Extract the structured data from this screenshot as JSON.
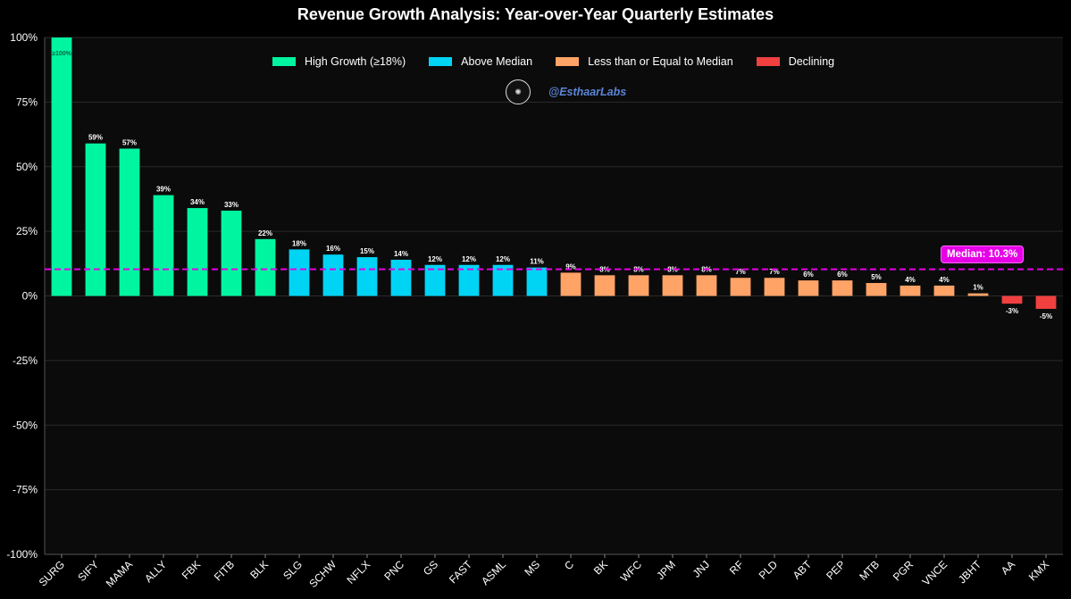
{
  "chart_data": {
    "type": "bar",
    "title": "Revenue Growth Analysis: Year-over-Year Quarterly Estimates",
    "xlabel": "",
    "ylabel": "",
    "ylim": [
      -100,
      100
    ],
    "yticks": [
      100,
      75,
      50,
      25,
      0,
      -25,
      -50,
      -75,
      -100
    ],
    "ytick_labels": [
      "100%",
      "75%",
      "50%",
      "25%",
      "0%",
      "-25%",
      "-50%",
      "-75%",
      "-100%"
    ],
    "categories": [
      "SURG",
      "SIFY",
      "MAMA",
      "ALLY",
      "FBK",
      "FITB",
      "BLK",
      "SLG",
      "SCHW",
      "NFLX",
      "PNC",
      "GS",
      "FAST",
      "ASML",
      "MS",
      "C",
      "BK",
      "WFC",
      "JPM",
      "JNJ",
      "RF",
      "PLD",
      "ABT",
      "PEP",
      "MTB",
      "PGR",
      "VNCE",
      "JBHT",
      "AA",
      "KMX"
    ],
    "values": [
      100,
      59,
      57,
      39,
      34,
      33,
      22,
      18,
      16,
      15,
      14,
      12,
      12,
      12,
      11,
      9,
      8,
      8,
      8,
      8,
      7,
      7,
      6,
      6,
      5,
      4,
      4,
      1,
      -3,
      -5
    ],
    "data_labels": [
      "≥100%",
      "59%",
      "57%",
      "39%",
      "34%",
      "33%",
      "22%",
      "18%",
      "16%",
      "15%",
      "14%",
      "12%",
      "12%",
      "12%",
      "11%",
      "9%",
      "8%",
      "8%",
      "8%",
      "8%",
      "7%",
      "7%",
      "6%",
      "6%",
      "5%",
      "4%",
      "4%",
      "1%",
      "-3%",
      "-5%"
    ],
    "groups": [
      "high",
      "high",
      "high",
      "high",
      "high",
      "high",
      "high",
      "above",
      "above",
      "above",
      "above",
      "above",
      "above",
      "above",
      "above",
      "below",
      "below",
      "below",
      "below",
      "below",
      "below",
      "below",
      "below",
      "below",
      "below",
      "below",
      "below",
      "below",
      "decl",
      "decl"
    ],
    "median": 10.3,
    "median_label": "Median: 10.3%",
    "legend": [
      {
        "key": "high",
        "label": "High Growth (≥18%)",
        "color": "#00f5a0"
      },
      {
        "key": "above",
        "label": "Above Median",
        "color": "#00d4f5"
      },
      {
        "key": "below",
        "label": "Less than or Equal to Median",
        "color": "#ffa366"
      },
      {
        "key": "decl",
        "label": "Declining",
        "color": "#f04040"
      }
    ],
    "legend_position": "top-center",
    "grid": true
  },
  "watermark": {
    "text": "@EsthaarLabs",
    "logo_icon": "lab-logo-icon"
  },
  "colors": {
    "background": "#000000",
    "plot_bg": "#0b0b0b",
    "grid": "#2a2a2a",
    "median_line": "#e600e6"
  }
}
